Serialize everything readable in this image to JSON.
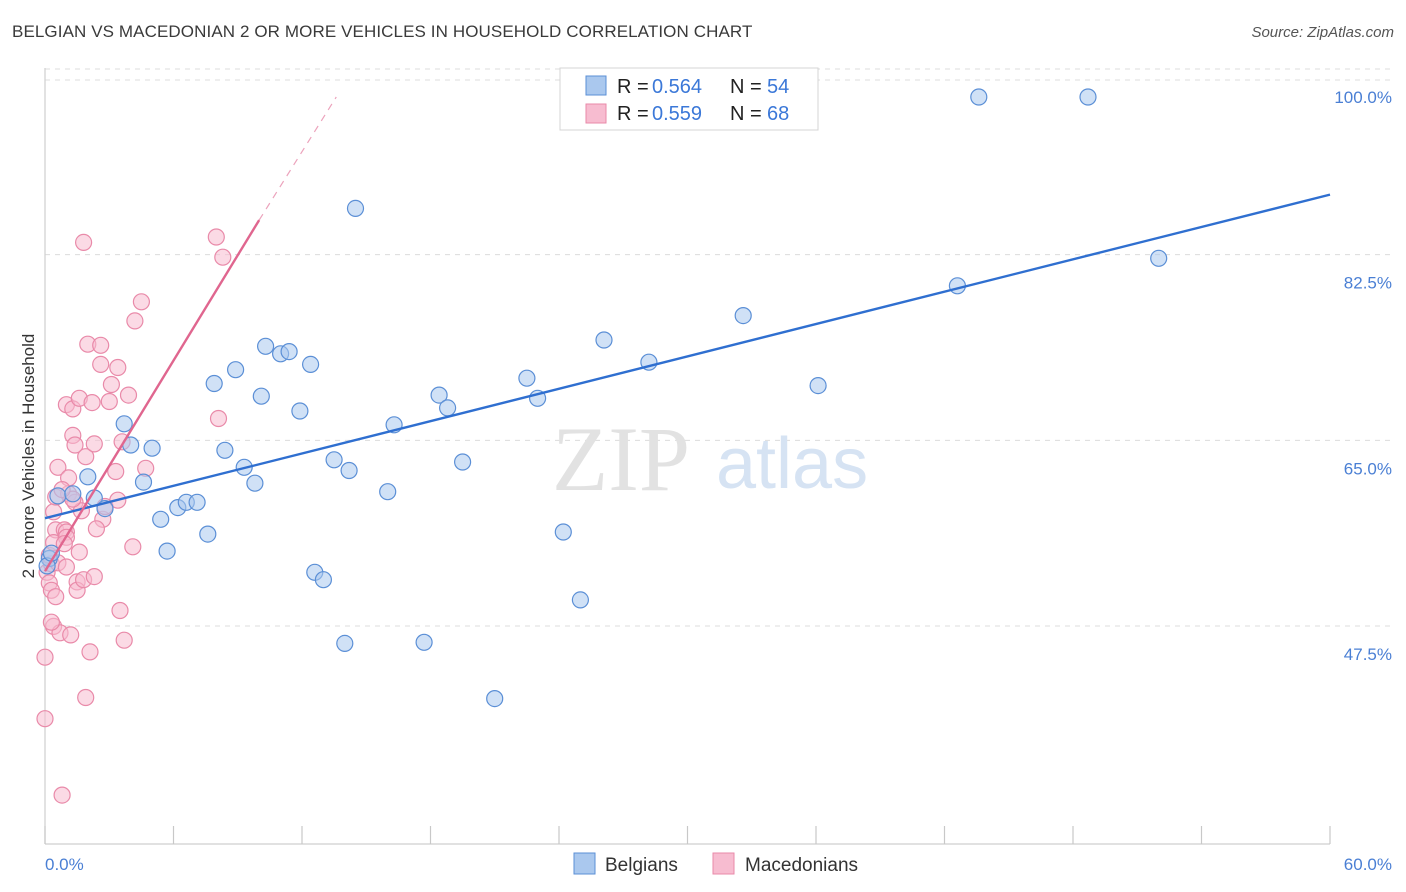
{
  "header": {
    "title": "BELGIAN VS MACEDONIAN 2 OR MORE VEHICLES IN HOUSEHOLD CORRELATION CHART",
    "source": "Source: ZipAtlas.com"
  },
  "watermark": {
    "zip": "ZIP",
    "atlas": "atlas"
  },
  "colors": {
    "belgian_fill": "#aac8ee",
    "belgian_stroke": "#5b8fd6",
    "belgian_line": "#2f6fd0",
    "macedonian_fill": "#f7bcd0",
    "macedonian_stroke": "#e98aa9",
    "macedonian_line": "#e0668f",
    "grid": "#dcdcdc",
    "tick_text": "#4a7fd4"
  },
  "legend": {
    "rows": [
      {
        "r_label": "R =",
        "r_value": "0.564",
        "n_label": "N =",
        "n_value": "54"
      },
      {
        "r_label": "R =",
        "r_value": "0.559",
        "n_label": "N =",
        "n_value": "68"
      }
    ],
    "bottom": [
      "Belgians",
      "Macedonians"
    ]
  },
  "chart_data": {
    "type": "scatter",
    "title": "BELGIAN VS MACEDONIAN 2 OR MORE VEHICLES IN HOUSEHOLD CORRELATION CHART",
    "xlabel": "",
    "ylabel": "2 or more Vehicles in Household",
    "xlim": [
      0,
      60
    ],
    "ylim": [
      31.9,
      101.5
    ],
    "x_tick_labels": [
      "0.0%",
      "60.0%"
    ],
    "y_ticks": [
      47.5,
      65.0,
      82.5,
      100.0
    ],
    "y_tick_labels": [
      "47.5%",
      "65.0%",
      "82.5%",
      "100.0%"
    ],
    "series": [
      {
        "name": "Belgians",
        "r": 0.564,
        "n": 54,
        "trend": {
          "x": [
            0,
            60
          ],
          "y": [
            60.3,
            90.8
          ]
        },
        "points": [
          [
            0.2,
            56.5
          ],
          [
            0.6,
            62.4
          ],
          [
            1.3,
            62.6
          ],
          [
            2.0,
            64.2
          ],
          [
            2.3,
            62.2
          ],
          [
            2.8,
            61.2
          ],
          [
            3.7,
            69.2
          ],
          [
            4.0,
            67.2
          ],
          [
            4.6,
            63.7
          ],
          [
            5.0,
            66.9
          ],
          [
            5.4,
            60.2
          ],
          [
            5.7,
            57.2
          ],
          [
            6.2,
            61.3
          ],
          [
            6.6,
            61.8
          ],
          [
            7.1,
            61.8
          ],
          [
            7.6,
            58.8
          ],
          [
            7.9,
            73.0
          ],
          [
            8.4,
            66.7
          ],
          [
            8.9,
            74.3
          ],
          [
            9.3,
            65.1
          ],
          [
            9.8,
            63.6
          ],
          [
            10.1,
            71.8
          ],
          [
            10.3,
            76.5
          ],
          [
            11.0,
            75.8
          ],
          [
            11.4,
            76.0
          ],
          [
            11.9,
            70.4
          ],
          [
            12.4,
            74.8
          ],
          [
            12.6,
            55.2
          ],
          [
            13.0,
            54.5
          ],
          [
            13.5,
            65.8
          ],
          [
            14.0,
            48.5
          ],
          [
            14.2,
            64.8
          ],
          [
            14.5,
            89.5
          ],
          [
            16.0,
            62.8
          ],
          [
            16.3,
            69.1
          ],
          [
            17.7,
            48.6
          ],
          [
            18.4,
            71.9
          ],
          [
            18.8,
            70.7
          ],
          [
            19.5,
            65.6
          ],
          [
            21.0,
            43.3
          ],
          [
            22.5,
            73.5
          ],
          [
            23.0,
            71.6
          ],
          [
            24.2,
            59.0
          ],
          [
            25.0,
            52.6
          ],
          [
            26.1,
            77.1
          ],
          [
            28.2,
            75.0
          ],
          [
            32.6,
            79.4
          ],
          [
            36.1,
            72.8
          ],
          [
            42.6,
            82.2
          ],
          [
            43.6,
            100.0
          ],
          [
            48.7,
            100.0
          ],
          [
            52.0,
            84.8
          ],
          [
            0.1,
            55.8
          ],
          [
            0.3,
            57.0
          ]
        ]
      },
      {
        "name": "Macedonians",
        "r": 0.559,
        "n": 68,
        "trend": {
          "x": [
            0,
            10
          ],
          "y": [
            55.3,
            88.4
          ]
        },
        "trend_dashed": {
          "x": [
            10,
            13.6
          ],
          "y": [
            88.4,
            100.0
          ]
        },
        "points": [
          [
            0.0,
            47.2
          ],
          [
            0.0,
            41.4
          ],
          [
            0.1,
            55.2
          ],
          [
            0.2,
            54.2
          ],
          [
            0.3,
            56.0
          ],
          [
            0.3,
            53.5
          ],
          [
            0.4,
            60.9
          ],
          [
            0.4,
            50.1
          ],
          [
            0.5,
            62.3
          ],
          [
            0.5,
            59.2
          ],
          [
            0.6,
            65.1
          ],
          [
            0.6,
            56.1
          ],
          [
            0.7,
            49.5
          ],
          [
            0.8,
            34.2
          ],
          [
            0.9,
            59.2
          ],
          [
            1.0,
            55.7
          ],
          [
            1.0,
            59.0
          ],
          [
            1.0,
            71.0
          ],
          [
            1.1,
            64.1
          ],
          [
            1.1,
            62.6
          ],
          [
            1.2,
            49.3
          ],
          [
            1.3,
            70.6
          ],
          [
            1.3,
            68.1
          ],
          [
            1.4,
            67.2
          ],
          [
            1.4,
            61.8
          ],
          [
            1.5,
            54.3
          ],
          [
            1.5,
            53.5
          ],
          [
            1.6,
            57.1
          ],
          [
            1.6,
            71.6
          ],
          [
            1.7,
            61.0
          ],
          [
            1.8,
            54.5
          ],
          [
            1.8,
            86.3
          ],
          [
            1.9,
            66.1
          ],
          [
            1.9,
            43.4
          ],
          [
            2.0,
            76.7
          ],
          [
            2.1,
            47.7
          ],
          [
            2.2,
            71.2
          ],
          [
            2.3,
            54.8
          ],
          [
            2.3,
            67.3
          ],
          [
            2.6,
            74.8
          ],
          [
            2.6,
            76.6
          ],
          [
            2.7,
            60.2
          ],
          [
            2.8,
            61.4
          ],
          [
            3.0,
            71.3
          ],
          [
            3.1,
            72.9
          ],
          [
            3.3,
            64.7
          ],
          [
            3.4,
            62.0
          ],
          [
            3.4,
            74.5
          ],
          [
            3.5,
            51.6
          ],
          [
            3.6,
            67.5
          ],
          [
            3.7,
            48.8
          ],
          [
            3.9,
            71.9
          ],
          [
            4.1,
            57.6
          ],
          [
            4.2,
            78.9
          ],
          [
            4.5,
            80.7
          ],
          [
            4.7,
            65.0
          ],
          [
            8.0,
            86.8
          ],
          [
            8.1,
            69.7
          ],
          [
            8.3,
            84.9
          ],
          [
            0.2,
            56.8
          ],
          [
            0.4,
            58.0
          ],
          [
            0.5,
            52.9
          ],
          [
            1.0,
            58.5
          ],
          [
            1.3,
            62.1
          ],
          [
            0.8,
            63.0
          ],
          [
            2.4,
            59.3
          ],
          [
            0.3,
            50.5
          ],
          [
            0.9,
            57.9
          ]
        ]
      }
    ]
  }
}
